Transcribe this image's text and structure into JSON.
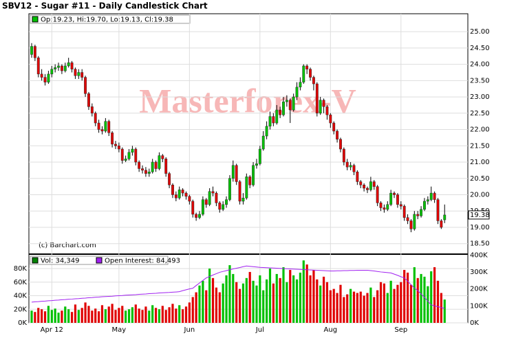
{
  "chart_data": [
    {
      "type": "candlestick",
      "title": "SBV12 - Sugar #11 - Daily Candlestick Chart",
      "ohlc_legend": "Op:19.23, Hi:19.70, Lo:19.13, Cl:19.38",
      "watermark": "Masterforex-V",
      "source": "(c) Barchart.com",
      "up_color": "#00c000",
      "down_color": "#e00000",
      "categories": [
        null,
        null,
        null,
        null,
        null,
        null,
        "Apr 12",
        null,
        null,
        null,
        null,
        null,
        null,
        null,
        null,
        null,
        null,
        null,
        null,
        null,
        null,
        null,
        null,
        null,
        null,
        null,
        "May",
        null,
        null,
        null,
        null,
        null,
        null,
        null,
        null,
        null,
        null,
        null,
        null,
        null,
        null,
        null,
        null,
        null,
        null,
        null,
        null,
        "Jun",
        null,
        null,
        null,
        null,
        null,
        null,
        null,
        null,
        null,
        null,
        null,
        null,
        null,
        null,
        null,
        null,
        null,
        null,
        null,
        null,
        "Jul",
        null,
        null,
        null,
        null,
        null,
        null,
        null,
        null,
        null,
        null,
        null,
        null,
        null,
        null,
        null,
        null,
        null,
        null,
        null,
        null,
        "Aug",
        null,
        null,
        null,
        null,
        null,
        null,
        null,
        null,
        null,
        null,
        null,
        null,
        null,
        null,
        null,
        null,
        null,
        null,
        null,
        null,
        "Sep",
        null,
        null,
        null,
        null,
        null,
        null,
        null,
        null,
        null,
        null,
        null,
        null,
        null
      ],
      "open": [
        24.3,
        24.55,
        24.2,
        23.7,
        23.6,
        23.45,
        23.7,
        23.85,
        23.9,
        23.95,
        23.8,
        23.95,
        24.05,
        23.85,
        23.65,
        23.75,
        23.6,
        23.1,
        22.7,
        22.5,
        22.2,
        22.0,
        21.95,
        22.25,
        21.9,
        21.55,
        21.5,
        21.4,
        21.05,
        21.1,
        21.3,
        21.4,
        21.0,
        20.8,
        20.75,
        20.65,
        20.7,
        21.0,
        20.8,
        21.2,
        21.1,
        20.65,
        20.3,
        20.0,
        19.9,
        20.15,
        20.05,
        19.95,
        19.8,
        19.4,
        19.3,
        19.4,
        19.85,
        19.7,
        20.1,
        20.05,
        19.75,
        19.55,
        19.7,
        19.85,
        20.5,
        20.9,
        20.4,
        19.8,
        19.9,
        20.55,
        20.3,
        20.9,
        20.95,
        21.4,
        21.8,
        22.1,
        22.4,
        22.2,
        22.6,
        22.45,
        22.85,
        22.9,
        22.6,
        23.0,
        23.3,
        23.45,
        23.95,
        23.85,
        23.6,
        23.4,
        22.5,
        22.9,
        22.7,
        22.45,
        22.2,
        21.95,
        21.7,
        21.4,
        21.0,
        20.85,
        20.9,
        20.7,
        20.4,
        20.3,
        20.2,
        20.15,
        20.4,
        20.25,
        19.75,
        19.6,
        19.55,
        19.7,
        20.05,
        20.0,
        19.7,
        19.65,
        19.3,
        19.2,
        18.95,
        19.4,
        19.35,
        19.55,
        19.8,
        19.85,
        20.05,
        19.85,
        19.2,
        19.23
      ],
      "high": [
        24.65,
        24.6,
        24.25,
        23.85,
        23.7,
        23.8,
        23.95,
        24.0,
        24.05,
        24.0,
        24.05,
        24.2,
        24.1,
        23.9,
        23.85,
        23.85,
        23.65,
        23.15,
        22.8,
        22.55,
        22.3,
        22.1,
        22.35,
        22.3,
        21.95,
        21.65,
        21.6,
        21.45,
        21.2,
        21.4,
        21.5,
        21.45,
        21.05,
        20.9,
        20.85,
        20.8,
        21.1,
        21.05,
        21.3,
        21.25,
        21.15,
        20.7,
        20.35,
        20.1,
        20.25,
        20.2,
        20.1,
        20.0,
        19.85,
        19.45,
        19.5,
        19.95,
        19.9,
        20.2,
        20.25,
        20.1,
        19.8,
        19.8,
        19.95,
        20.6,
        21.05,
        20.95,
        20.45,
        20.05,
        20.65,
        20.6,
        21.0,
        21.1,
        21.5,
        21.95,
        22.25,
        22.55,
        22.5,
        22.75,
        22.7,
        23.0,
        23.05,
        22.95,
        23.1,
        23.45,
        23.6,
        24.0,
        24.0,
        23.9,
        23.65,
        23.45,
        23.0,
        22.95,
        22.75,
        22.5,
        22.25,
        22.0,
        21.75,
        21.45,
        21.1,
        21.0,
        20.95,
        20.75,
        20.45,
        20.35,
        20.25,
        20.55,
        20.45,
        20.3,
        19.8,
        19.7,
        19.8,
        20.15,
        20.1,
        20.05,
        19.8,
        19.7,
        19.4,
        19.25,
        19.5,
        19.5,
        19.65,
        19.9,
        19.95,
        20.25,
        20.1,
        19.9,
        19.25,
        19.7
      ],
      "low": [
        24.2,
        24.1,
        23.6,
        23.5,
        23.35,
        23.4,
        23.6,
        23.75,
        23.8,
        23.7,
        23.75,
        23.9,
        23.75,
        23.55,
        23.55,
        23.5,
        23.0,
        22.6,
        22.4,
        22.1,
        21.9,
        21.85,
        21.9,
        21.8,
        21.45,
        21.4,
        21.3,
        20.95,
        21.0,
        21.05,
        21.2,
        20.9,
        20.7,
        20.65,
        20.55,
        20.55,
        20.65,
        20.7,
        20.75,
        21.0,
        20.55,
        20.2,
        19.9,
        19.8,
        19.85,
        19.95,
        19.85,
        19.7,
        19.3,
        19.2,
        19.25,
        19.35,
        19.6,
        19.65,
        19.95,
        19.65,
        19.45,
        19.5,
        19.6,
        19.8,
        20.4,
        20.3,
        19.7,
        19.7,
        19.85,
        20.2,
        20.25,
        20.8,
        20.9,
        21.35,
        21.7,
        22.0,
        22.1,
        22.15,
        22.35,
        22.4,
        22.7,
        22.2,
        22.55,
        22.9,
        23.2,
        23.4,
        23.7,
        23.5,
        23.2,
        22.4,
        22.45,
        22.5,
        22.3,
        22.05,
        21.85,
        21.6,
        21.3,
        20.9,
        20.75,
        20.75,
        20.6,
        20.3,
        20.2,
        20.1,
        20.05,
        20.1,
        20.15,
        19.65,
        19.5,
        19.45,
        19.5,
        19.65,
        19.9,
        19.6,
        19.55,
        19.2,
        19.1,
        18.85,
        18.9,
        19.25,
        19.3,
        19.5,
        19.7,
        19.8,
        19.75,
        19.1,
        18.95,
        19.13
      ],
      "close": [
        24.55,
        24.2,
        23.7,
        23.6,
        23.45,
        23.7,
        23.85,
        23.9,
        23.95,
        23.8,
        23.95,
        24.05,
        23.85,
        23.65,
        23.75,
        23.6,
        23.1,
        22.7,
        22.5,
        22.2,
        22.0,
        21.95,
        22.25,
        21.9,
        21.55,
        21.5,
        21.4,
        21.05,
        21.1,
        21.3,
        21.4,
        21.0,
        20.8,
        20.75,
        20.65,
        20.7,
        21.0,
        20.8,
        21.2,
        21.1,
        20.65,
        20.3,
        20.0,
        19.9,
        20.15,
        20.05,
        19.95,
        19.8,
        19.4,
        19.3,
        19.4,
        19.85,
        19.7,
        20.1,
        20.05,
        19.75,
        19.55,
        19.7,
        19.85,
        20.5,
        20.9,
        20.4,
        19.8,
        19.9,
        20.55,
        20.3,
        20.9,
        20.95,
        21.4,
        21.8,
        22.1,
        22.4,
        22.2,
        22.6,
        22.45,
        22.85,
        22.9,
        22.6,
        23.0,
        23.3,
        23.45,
        23.95,
        23.85,
        23.6,
        23.4,
        22.5,
        22.9,
        22.7,
        22.45,
        22.2,
        21.95,
        21.7,
        21.4,
        21.0,
        20.85,
        20.9,
        20.7,
        20.4,
        20.3,
        20.2,
        20.15,
        20.4,
        20.25,
        19.75,
        19.6,
        19.55,
        19.7,
        20.05,
        20.0,
        19.7,
        19.65,
        19.3,
        19.2,
        18.95,
        19.4,
        19.35,
        19.55,
        19.8,
        19.85,
        20.05,
        19.85,
        19.2,
        19.0,
        19.38
      ],
      "ylim": [
        18.22,
        25.55
      ],
      "yticks": [
        {
          "value": 18.5,
          "label": "18.50"
        },
        {
          "value": 19,
          "label": "19.00"
        },
        {
          "value": 19.5,
          "label": "19.50"
        },
        {
          "value": 20,
          "label": "20.00"
        },
        {
          "value": 20.5,
          "label": "20.50"
        },
        {
          "value": 21,
          "label": "21.00"
        },
        {
          "value": 21.5,
          "label": "21.50"
        },
        {
          "value": 22,
          "label": "22.00"
        },
        {
          "value": 22.5,
          "label": "22.50"
        },
        {
          "value": 23,
          "label": "23.00"
        },
        {
          "value": 23.5,
          "label": "23.50"
        },
        {
          "value": 24,
          "label": "24.00"
        },
        {
          "value": 24.5,
          "label": "24.50"
        },
        {
          "value": 25,
          "label": "25.00"
        }
      ],
      "grid": true
    },
    {
      "type": "bar",
      "series": [
        {
          "name": "Vol: 34,349",
          "color": "#008000",
          "values": [
            18000,
            16000,
            22000,
            20000,
            17000,
            25000,
            19000,
            21000,
            15000,
            18000,
            24000,
            20000,
            16000,
            27000,
            19000,
            22000,
            30000,
            25000,
            18000,
            21000,
            17000,
            26000,
            20000,
            24000,
            28000,
            19000,
            22000,
            25000,
            18000,
            20000,
            23000,
            27000,
            21000,
            19000,
            24000,
            18000,
            26000,
            22000,
            20000,
            25000,
            19000,
            23000,
            28000,
            21000,
            26000,
            20000,
            24000,
            30000,
            38000,
            45000,
            55000,
            62000,
            48000,
            80000,
            66000,
            52000,
            45000,
            58000,
            70000,
            85000,
            72000,
            60000,
            50000,
            58000,
            66000,
            75000,
            62000,
            55000,
            70000,
            48000,
            64000,
            80000,
            58000,
            72000,
            66000,
            82000,
            60000,
            78000,
            70000,
            64000,
            74000,
            92000,
            86000,
            70000,
            78000,
            64000,
            55000,
            68000,
            60000,
            48000,
            50000,
            44000,
            56000,
            38000,
            42000,
            50000,
            46000,
            44000,
            46000,
            40000,
            44000,
            52000,
            38000,
            48000,
            60000,
            58000,
            44000,
            62000,
            50000,
            56000,
            60000,
            78000,
            74000,
            56000,
            82000,
            66000,
            72000,
            68000,
            54000,
            76000,
            82000,
            62000,
            44000,
            34349
          ]
        },
        {
          "name": "Open Interest: 84,493",
          "color": "#a020f0",
          "axis": "y2",
          "values": [
            122000,
            124000,
            125000,
            127000,
            128000,
            130000,
            131000,
            133000,
            134000,
            136000,
            137000,
            139000,
            140000,
            142000,
            143000,
            145000,
            146000,
            148000,
            149000,
            151000,
            152000,
            154000,
            155000,
            156000,
            157000,
            159000,
            160000,
            161000,
            163000,
            164000,
            165000,
            166000,
            168000,
            169000,
            170000,
            172000,
            173000,
            174000,
            176000,
            177000,
            178000,
            179000,
            181000,
            182000,
            184000,
            190000,
            195000,
            200000,
            204000,
            220000,
            235000,
            250000,
            265000,
            273000,
            282000,
            290000,
            298000,
            303000,
            308000,
            313000,
            318000,
            322000,
            326000,
            331000,
            335000,
            333000,
            331000,
            329000,
            327000,
            326000,
            325000,
            324000,
            323000,
            322000,
            321000,
            320000,
            319000,
            318000,
            317000,
            316000,
            315000,
            314000,
            313000,
            312000,
            311000,
            310000,
            309000,
            308000,
            307000,
            306000,
            306000,
            307000,
            307000,
            308000,
            308000,
            309000,
            309000,
            310000,
            310000,
            310000,
            310000,
            308000,
            306000,
            303000,
            300000,
            298000,
            296000,
            294000,
            287000,
            280000,
            272000,
            265000,
            245000,
            225000,
            205000,
            190000,
            170000,
            150000,
            128000,
            106000,
            100000,
            95000,
            90000,
            84493
          ]
        }
      ],
      "ylim": [
        0,
        100000
      ],
      "yticks": [
        {
          "value": 0,
          "label": "0K"
        },
        {
          "value": 20000,
          "label": "20K"
        },
        {
          "value": 40000,
          "label": "40K"
        },
        {
          "value": 60000,
          "label": "60K"
        },
        {
          "value": 80000,
          "label": "80K"
        }
      ],
      "y2lim": [
        0,
        400000
      ],
      "y2ticks": [
        {
          "value": 0,
          "label": "0K"
        },
        {
          "value": 100000,
          "label": "100K"
        },
        {
          "value": 200000,
          "label": "200K"
        },
        {
          "value": 300000,
          "label": "300K"
        },
        {
          "value": 400000,
          "label": "400K"
        }
      ]
    }
  ]
}
